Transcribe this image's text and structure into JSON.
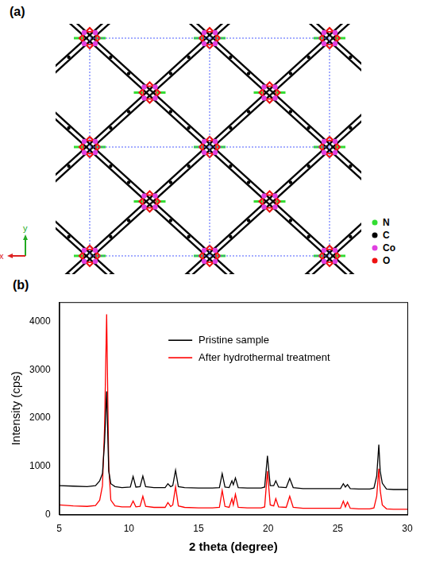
{
  "diagram": {
    "label": "(a)",
    "legend": [
      {
        "name": "N",
        "color": "#33dd33"
      },
      {
        "name": "C",
        "color": "#000000"
      },
      {
        "name": "Co",
        "color": "#e040e0"
      },
      {
        "name": "O",
        "color": "#ee1111"
      }
    ],
    "axis_labels": [
      "y",
      "x"
    ]
  },
  "chart_data": {
    "type": "line",
    "title": "(b)",
    "xlabel": "2 theta (degree)",
    "ylabel": "Intensity (cps)",
    "x": [
      5.0,
      6.0,
      7.0,
      7.6,
      7.9,
      8.1,
      8.25,
      8.4,
      8.55,
      8.7,
      9.0,
      9.5,
      10.1,
      10.3,
      10.5,
      10.8,
      11.0,
      11.2,
      11.8,
      12.6,
      12.8,
      13.0,
      13.15,
      13.35,
      13.55,
      14.0,
      15.0,
      16.0,
      16.5,
      16.7,
      16.9,
      17.2,
      17.4,
      17.5,
      17.65,
      17.85,
      18.5,
      19.5,
      19.75,
      19.95,
      20.15,
      20.4,
      20.55,
      20.75,
      21.3,
      21.55,
      21.8,
      22.5,
      23.5,
      24.5,
      25.2,
      25.4,
      25.55,
      25.7,
      25.9,
      26.5,
      27.3,
      27.6,
      27.8,
      27.95,
      28.05,
      28.2,
      28.5,
      29.0,
      30.0
    ],
    "series": [
      {
        "name": "Pristine sample",
        "color": "#000000",
        "values": [
          600,
          590,
          580,
          600,
          700,
          850,
          1500,
          2550,
          900,
          640,
          580,
          560,
          570,
          790,
          570,
          580,
          800,
          580,
          560,
          560,
          640,
          580,
          600,
          920,
          580,
          560,
          550,
          550,
          560,
          850,
          570,
          560,
          700,
          620,
          760,
          560,
          550,
          550,
          570,
          1220,
          600,
          600,
          700,
          570,
          560,
          750,
          560,
          540,
          540,
          540,
          540,
          640,
          570,
          620,
          540,
          530,
          530,
          550,
          800,
          1450,
          900,
          650,
          530,
          520,
          520
        ]
      },
      {
        "name": "After hydrothermal treatment",
        "color": "#ff0000",
        "values": [
          200,
          180,
          170,
          190,
          300,
          600,
          1800,
          4150,
          1000,
          300,
          180,
          160,
          160,
          280,
          160,
          170,
          380,
          170,
          150,
          150,
          250,
          170,
          200,
          580,
          180,
          150,
          140,
          140,
          150,
          500,
          170,
          150,
          330,
          200,
          420,
          150,
          140,
          140,
          160,
          900,
          200,
          180,
          330,
          160,
          150,
          380,
          150,
          130,
          130,
          130,
          130,
          280,
          160,
          260,
          130,
          120,
          120,
          140,
          380,
          950,
          500,
          200,
          120,
          110,
          110
        ]
      }
    ],
    "xlim": [
      5,
      30
    ],
    "xticks": [
      5,
      10,
      15,
      20,
      25,
      30
    ],
    "ylim": [
      0,
      4400
    ],
    "yticks": [
      0,
      1000,
      2000,
      3000,
      4000
    ],
    "legend": "upper center",
    "grid": false
  }
}
